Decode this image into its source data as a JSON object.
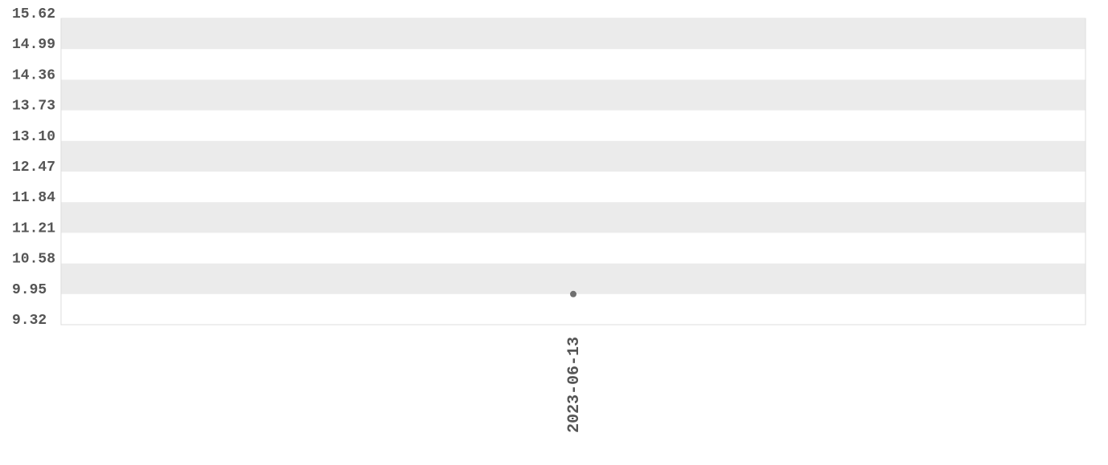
{
  "chart_data": {
    "type": "line",
    "categories": [
      "2023-06-13"
    ],
    "series": [
      {
        "color": "#707070",
        "values": [
          9.95
        ]
      }
    ],
    "ylim": [
      9.32,
      15.62
    ],
    "yticks": [
      9.32,
      9.95,
      10.58,
      11.21,
      11.84,
      12.47,
      {
        "value": 13.1,
        "label": "13.10"
      },
      13.73,
      14.36,
      14.99,
      15.62
    ],
    "grid": true
  }
}
